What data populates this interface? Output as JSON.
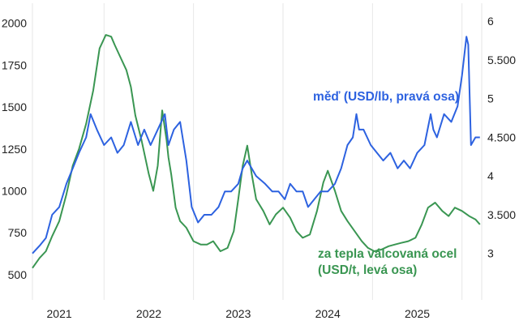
{
  "chart_data": {
    "type": "line",
    "title": "",
    "xlabel": "",
    "x_tick_labels": [
      "2021",
      "2022",
      "2023",
      "2024",
      "2025"
    ],
    "x_range": [
      2020.7,
      2025.72
    ],
    "left_axis": {
      "range": [
        350,
        2090
      ],
      "ticks": [
        2000,
        1750,
        1500,
        1250,
        1000,
        750,
        500
      ],
      "tick_labels": [
        "2000",
        "1750",
        "1500",
        "1250",
        "1000",
        "750",
        "500"
      ]
    },
    "right_axis": {
      "range": [
        2.4,
        6.17
      ],
      "ticks": [
        6,
        5.5,
        5,
        4.5,
        4,
        3.5,
        3
      ],
      "tick_labels": [
        "6",
        "5.500",
        "5",
        "4.500",
        "4",
        "3.500",
        "3"
      ]
    },
    "grid": "vertical",
    "annotations": {
      "copper": "měď (USD/lb, pravá osa)",
      "steel_line1": "za tepla válcovaná ocel",
      "steel_line2": "(USD/t, levá osa)"
    },
    "series": [
      {
        "name": "měď (USD/lb, pravá osa)",
        "axis": "right",
        "color": "#2d62e0",
        "x": [
          2020.7,
          2020.78,
          2020.85,
          2020.92,
          2021.0,
          2021.08,
          2021.15,
          2021.22,
          2021.3,
          2021.35,
          2021.42,
          2021.5,
          2021.58,
          2021.65,
          2021.72,
          2021.8,
          2021.88,
          2021.95,
          2022.02,
          2022.1,
          2022.18,
          2022.22,
          2022.28,
          2022.35,
          2022.42,
          2022.48,
          2022.55,
          2022.62,
          2022.7,
          2022.78,
          2022.85,
          2022.92,
          2023.0,
          2023.05,
          2023.1,
          2023.15,
          2023.2,
          2023.3,
          2023.38,
          2023.45,
          2023.52,
          2023.58,
          2023.65,
          2023.72,
          2023.78,
          2023.85,
          2023.92,
          2024.0,
          2024.08,
          2024.15,
          2024.22,
          2024.28,
          2024.32,
          2024.35,
          2024.4,
          2024.48,
          2024.55,
          2024.62,
          2024.7,
          2024.78,
          2024.85,
          2024.92,
          2025.0,
          2025.08,
          2025.15,
          2025.18,
          2025.22,
          2025.3,
          2025.38,
          2025.45,
          2025.5,
          2025.53,
          2025.55,
          2025.57,
          2025.6,
          2025.65,
          2025.7
        ],
        "y": [
          3.0,
          3.1,
          3.2,
          3.5,
          3.6,
          3.9,
          4.1,
          4.3,
          4.5,
          4.8,
          4.6,
          4.4,
          4.5,
          4.3,
          4.4,
          4.7,
          4.4,
          4.6,
          4.4,
          4.6,
          4.8,
          4.4,
          4.6,
          4.7,
          4.2,
          3.6,
          3.4,
          3.5,
          3.5,
          3.6,
          3.8,
          3.8,
          3.9,
          4.1,
          4.2,
          4.1,
          4.0,
          3.9,
          3.8,
          3.8,
          3.7,
          3.9,
          3.8,
          3.8,
          3.6,
          3.7,
          3.8,
          3.8,
          3.9,
          4.1,
          4.4,
          4.5,
          4.8,
          4.6,
          4.6,
          4.4,
          4.3,
          4.2,
          4.3,
          4.1,
          4.2,
          4.1,
          4.3,
          4.4,
          4.8,
          4.6,
          4.5,
          4.8,
          4.7,
          4.9,
          5.3,
          5.6,
          5.8,
          5.7,
          4.4,
          4.5,
          4.5
        ]
      },
      {
        "name": "za tepla válcovaná ocel (USD/t, levá osa)",
        "axis": "left",
        "color": "#3a9652",
        "x": [
          2020.7,
          2020.78,
          2020.85,
          2020.92,
          2021.0,
          2021.08,
          2021.15,
          2021.22,
          2021.3,
          2021.38,
          2021.45,
          2021.52,
          2021.58,
          2021.62,
          2021.68,
          2021.75,
          2021.8,
          2021.85,
          2021.92,
          2022.0,
          2022.05,
          2022.1,
          2022.15,
          2022.2,
          2022.22,
          2022.25,
          2022.3,
          2022.35,
          2022.42,
          2022.5,
          2022.58,
          2022.65,
          2022.72,
          2022.8,
          2022.88,
          2022.95,
          2023.0,
          2023.05,
          2023.1,
          2023.15,
          2023.2,
          2023.28,
          2023.35,
          2023.42,
          2023.5,
          2023.58,
          2023.65,
          2023.72,
          2023.8,
          2023.88,
          2023.95,
          2024.0,
          2024.08,
          2024.15,
          2024.22,
          2024.3,
          2024.38,
          2024.45,
          2024.52,
          2024.6,
          2024.68,
          2024.75,
          2024.82,
          2024.9,
          2024.98,
          2025.05,
          2025.12,
          2025.2,
          2025.28,
          2025.35,
          2025.42,
          2025.5,
          2025.58,
          2025.65,
          2025.7
        ],
        "y": [
          540,
          600,
          640,
          730,
          820,
          980,
          1150,
          1250,
          1400,
          1600,
          1850,
          1930,
          1920,
          1870,
          1800,
          1720,
          1620,
          1450,
          1300,
          1100,
          1000,
          1150,
          1480,
          1300,
          1200,
          1100,
          900,
          820,
          780,
          700,
          680,
          680,
          700,
          640,
          660,
          760,
          950,
          1150,
          1270,
          1100,
          950,
          880,
          800,
          860,
          900,
          840,
          760,
          720,
          740,
          880,
          1050,
          1120,
          1000,
          880,
          820,
          760,
          700,
          660,
          640,
          650,
          670,
          680,
          690,
          700,
          720,
          800,
          900,
          930,
          880,
          850,
          900,
          880,
          850,
          830,
          800
        ]
      }
    ]
  }
}
